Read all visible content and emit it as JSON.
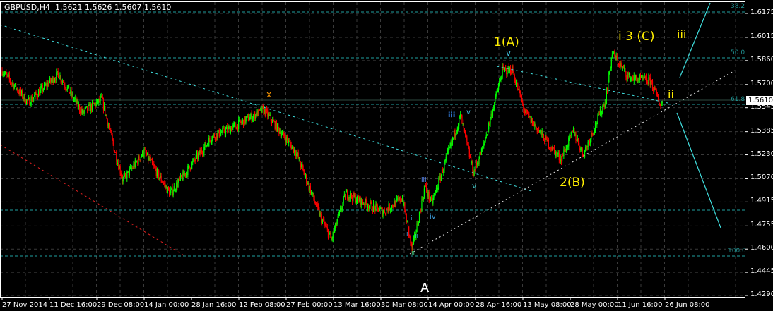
{
  "header": {
    "symbol": "GBPUSD,H4",
    "ohlc": "1.5621 1.5626 1.5607 1.5610"
  },
  "colors": {
    "background": "#000000",
    "bull": "#00ff00",
    "bear": "#ff0000",
    "grid": "#3a3a3a",
    "fib": "#1fa0a0",
    "trendline": "#40e0e0",
    "wave_labels_major": "#ffee00"
  },
  "chart_data": {
    "type": "candlestick",
    "title": "GBPUSD,H4",
    "current_price": "1.5610",
    "y_ticks": [
      "1.6175",
      "1.6015",
      "1.5860",
      "1.5700",
      "1.5545",
      "1.5385",
      "1.5230",
      "1.5070",
      "1.4915",
      "1.4755",
      "1.4600",
      "1.4445",
      "1.4290"
    ],
    "ylim": [
      1.429,
      1.6175
    ],
    "x_ticks": [
      {
        "label": "27 Nov 2014",
        "date": "2014-11-27T00:00"
      },
      {
        "label": "11 Dec 16:00",
        "date": "2014-12-11T16:00"
      },
      {
        "label": "29 Dec 08:00",
        "date": "2014-12-29T08:00"
      },
      {
        "label": "14 Jan 00:00",
        "date": "2015-01-14T00:00"
      },
      {
        "label": "28 Jan 16:00",
        "date": "2015-01-28T16:00"
      },
      {
        "label": "12 Feb 08:00",
        "date": "2015-02-12T08:00"
      },
      {
        "label": "27 Feb 00:00",
        "date": "2015-02-27T00:00"
      },
      {
        "label": "13 Mar 16:00",
        "date": "2015-03-13T16:00"
      },
      {
        "label": "30 Mar 08:00",
        "date": "2015-03-30T08:00"
      },
      {
        "label": "14 Apr 00:00",
        "date": "2015-04-14T00:00"
      },
      {
        "label": "28 Apr 16:00",
        "date": "2015-04-28T16:00"
      },
      {
        "label": "13 May 08:00",
        "date": "2015-05-13T08:00"
      },
      {
        "label": "28 May 00:00",
        "date": "2015-05-28T00:00"
      },
      {
        "label": "11 Jun 16:00",
        "date": "2015-06-11T16:00"
      },
      {
        "label": "26 Jun 08:00",
        "date": "2015-06-26T08:00"
      }
    ],
    "price_path": [
      [
        "2014-11-27",
        1.5793
      ],
      [
        "2014-12-05",
        1.558
      ],
      [
        "2014-12-15",
        1.577
      ],
      [
        "2014-12-24",
        1.551
      ],
      [
        "2014-12-31",
        1.56
      ],
      [
        "2015-01-05",
        1.52
      ],
      [
        "2015-01-07",
        1.506
      ],
      [
        "2015-01-14",
        1.525
      ],
      [
        "2015-01-22",
        1.497
      ],
      [
        "2015-02-04",
        1.535
      ],
      [
        "2015-02-11",
        1.542
      ],
      [
        "2015-02-20",
        1.553
      ],
      [
        "2015-03-02",
        1.525
      ],
      [
        "2015-03-09",
        1.485
      ],
      [
        "2015-03-13",
        1.466
      ],
      [
        "2015-03-18",
        1.497
      ],
      [
        "2015-03-31",
        1.485
      ],
      [
        "2015-04-06",
        1.494
      ],
      [
        "2015-04-09",
        1.459
      ],
      [
        "2015-04-13",
        1.502
      ],
      [
        "2015-04-15",
        1.49
      ],
      [
        "2015-04-24",
        1.549
      ],
      [
        "2015-04-28",
        1.511
      ],
      [
        "2015-05-01",
        1.528
      ],
      [
        "2015-05-07",
        1.579
      ],
      [
        "2015-05-10",
        1.58
      ],
      [
        "2015-05-14",
        1.551
      ],
      [
        "2015-05-25",
        1.52
      ],
      [
        "2015-05-29",
        1.539
      ],
      [
        "2015-06-01",
        1.523
      ],
      [
        "2015-06-08",
        1.56
      ],
      [
        "2015-06-10",
        1.591
      ],
      [
        "2015-06-15",
        1.575
      ],
      [
        "2015-06-22",
        1.572
      ],
      [
        "2015-06-25",
        1.556
      ],
      [
        "2015-06-26",
        1.561
      ]
    ],
    "fibonacci_levels": [
      "38.2",
      "50.0",
      "61.8",
      "100.0"
    ],
    "wave_labels": {
      "x": "x",
      "one_a": "1(A)",
      "two_b": "2(B)",
      "three_c": "i 3 (C)",
      "iii_major": "iii",
      "ii_major": "ii",
      "a": "A",
      "v_top": "v",
      "III": "iii",
      "v_small": "v",
      "IV": "iv",
      "i": "i",
      "ii": "ii",
      "iii": "iii",
      "iv": "iv",
      "I": "i",
      "II": "ii"
    }
  }
}
